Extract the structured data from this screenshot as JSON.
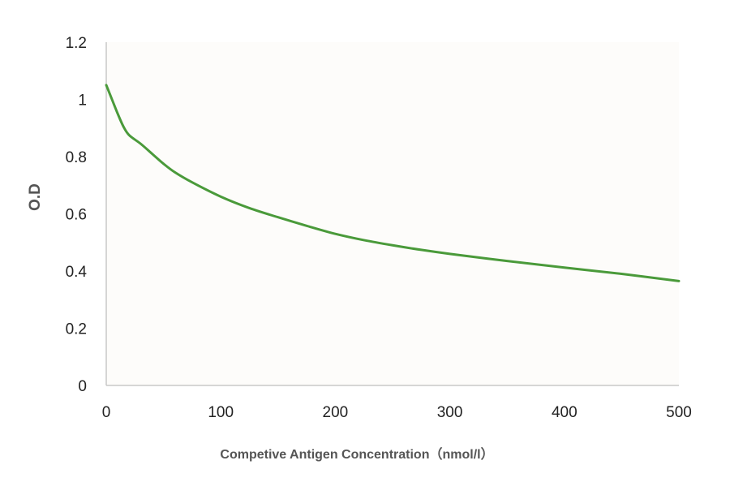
{
  "chart_data": {
    "type": "line",
    "title": "",
    "xlabel": "Competive Antigen Concentration（nmol/l）",
    "ylabel": "O.D",
    "xlim": [
      0,
      500
    ],
    "ylim": [
      0,
      1.2
    ],
    "x_ticks": [
      "0",
      "100",
      "200",
      "300",
      "400",
      "500"
    ],
    "y_ticks": [
      "0",
      "0.2",
      "0.4",
      "0.6",
      "0.8",
      "1",
      "1.2"
    ],
    "grid": false,
    "legend": "none",
    "series": [
      {
        "color": "#4a9a3a",
        "x": [
          0,
          5,
          10,
          15,
          20,
          30,
          40,
          50,
          60,
          75,
          100,
          125,
          150,
          175,
          200,
          225,
          250,
          275,
          300,
          350,
          400,
          450,
          500
        ],
        "y": [
          1.05,
          1.0,
          0.95,
          0.905,
          0.875,
          0.845,
          0.81,
          0.775,
          0.745,
          0.71,
          0.66,
          0.62,
          0.588,
          0.558,
          0.53,
          0.508,
          0.49,
          0.474,
          0.46,
          0.435,
          0.412,
          0.39,
          0.365
        ]
      }
    ],
    "plot_area_color": "#fdfcfa",
    "axis_color": "#c8c8c8"
  }
}
